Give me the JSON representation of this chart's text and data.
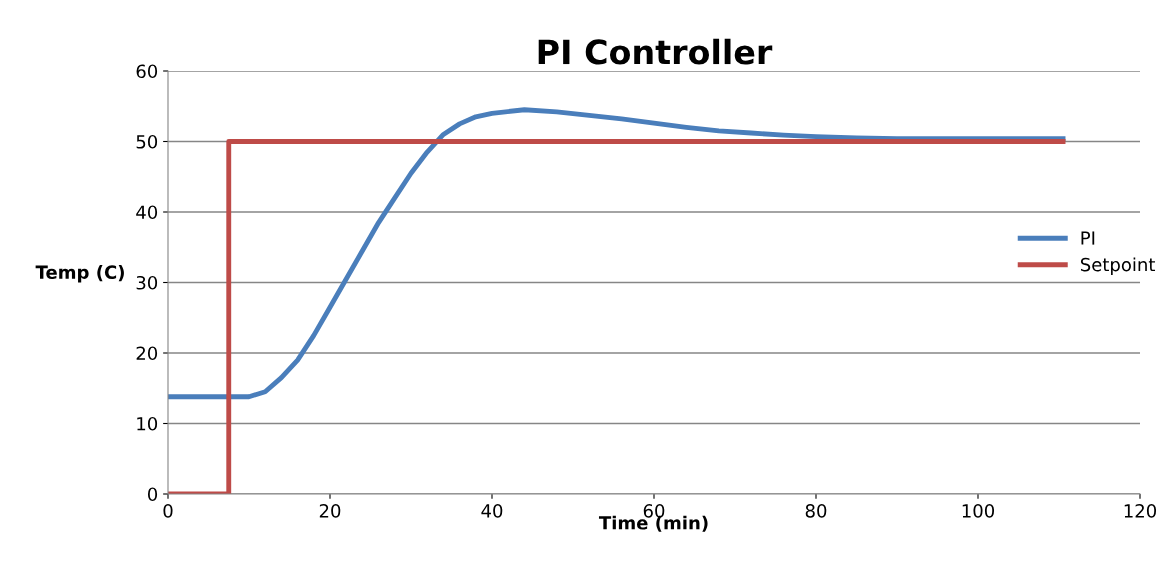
{
  "chart_data": {
    "type": "line",
    "title": "PI Controller",
    "xlabel": "Time (min)",
    "ylabel": "Temp (C)",
    "xlim": [
      0,
      120
    ],
    "xticks": [
      0,
      20,
      40,
      60,
      80,
      100,
      120
    ],
    "ylim": [
      0,
      60
    ],
    "yticks": [
      0,
      10,
      20,
      30,
      40,
      50,
      60
    ],
    "grid": "y",
    "legend": "right",
    "marker": "none",
    "line_style": "solid",
    "series": [
      {
        "name": "PI",
        "color": "#4a7ebb",
        "x": [
          0,
          5,
          10,
          12,
          14,
          16,
          18,
          20,
          22,
          24,
          26,
          28,
          30,
          32,
          34,
          36,
          38,
          40,
          44,
          48,
          52,
          56,
          60,
          64,
          68,
          72,
          76,
          80,
          85,
          90,
          100,
          110.5
        ],
        "values": [
          13.8,
          13.8,
          13.8,
          14.5,
          16.5,
          19,
          22.5,
          26.5,
          30.5,
          34.5,
          38.5,
          42,
          45.5,
          48.5,
          51,
          52.5,
          53.5,
          54,
          54.5,
          54.2,
          53.7,
          53.2,
          52.6,
          52,
          51.5,
          51.2,
          50.9,
          50.7,
          50.5,
          50.4,
          50.4,
          50.4
        ]
      },
      {
        "name": "Setpoint",
        "color": "#be4b48",
        "type": "step",
        "x": [
          0,
          7.5,
          110.5
        ],
        "values": [
          0,
          50,
          50
        ]
      }
    ]
  }
}
